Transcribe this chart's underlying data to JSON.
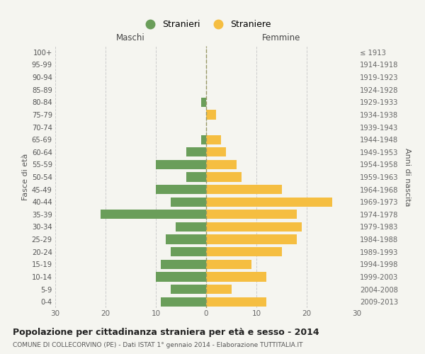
{
  "age_groups": [
    "0-4",
    "5-9",
    "10-14",
    "15-19",
    "20-24",
    "25-29",
    "30-34",
    "35-39",
    "40-44",
    "45-49",
    "50-54",
    "55-59",
    "60-64",
    "65-69",
    "70-74",
    "75-79",
    "80-84",
    "85-89",
    "90-94",
    "95-99",
    "100+"
  ],
  "birth_years": [
    "2009-2013",
    "2004-2008",
    "1999-2003",
    "1994-1998",
    "1989-1993",
    "1984-1988",
    "1979-1983",
    "1974-1978",
    "1969-1973",
    "1964-1968",
    "1959-1963",
    "1954-1958",
    "1949-1953",
    "1944-1948",
    "1939-1943",
    "1934-1938",
    "1929-1933",
    "1924-1928",
    "1919-1923",
    "1914-1918",
    "≤ 1913"
  ],
  "males": [
    9,
    7,
    10,
    9,
    7,
    8,
    6,
    21,
    7,
    10,
    4,
    10,
    4,
    1,
    0,
    0,
    1,
    0,
    0,
    0,
    0
  ],
  "females": [
    12,
    5,
    12,
    9,
    15,
    18,
    19,
    18,
    25,
    15,
    7,
    6,
    4,
    3,
    0,
    2,
    0,
    0,
    0,
    0,
    0
  ],
  "male_color": "#6a9e5a",
  "female_color": "#f5be41",
  "background_color": "#f5f5f0",
  "grid_color": "#cccccc",
  "title": "Popolazione per cittadinanza straniera per età e sesso - 2014",
  "subtitle": "COMUNE DI COLLECORVINO (PE) - Dati ISTAT 1° gennaio 2014 - Elaborazione TUTTITALIA.IT",
  "left_label": "Maschi",
  "right_label": "Femmine",
  "ylabel": "Fasce di età",
  "ylabel_right": "Anni di nascita",
  "legend_male": "Stranieri",
  "legend_female": "Straniere",
  "xlim": 30,
  "bar_height": 0.75
}
